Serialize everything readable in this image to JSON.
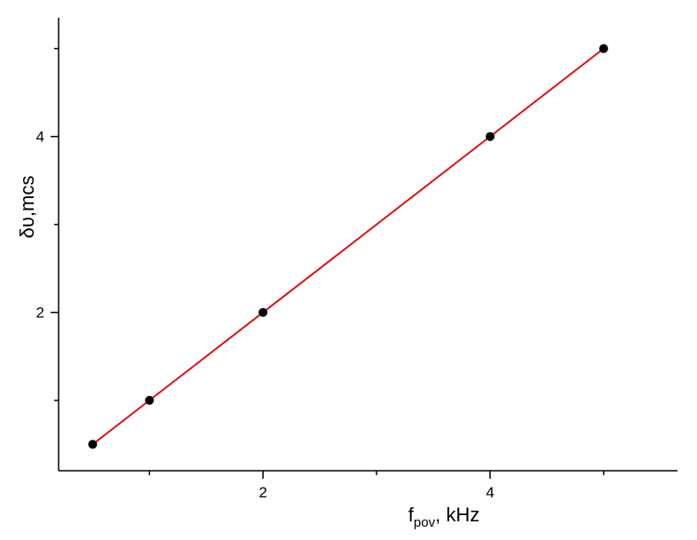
{
  "chart_data": {
    "type": "line",
    "xlabel": {
      "main": "f",
      "sub": "pov",
      "suffix": ", kHz"
    },
    "ylabel": "δυ,mcs",
    "xlim": [
      0.2,
      5.65
    ],
    "ylim": [
      0.2,
      5.35
    ],
    "x_ticks_major": [
      2,
      4
    ],
    "x_ticks_minor": [
      1,
      3,
      5
    ],
    "y_ticks_major": [
      2,
      4
    ],
    "y_ticks_minor": [
      1,
      3,
      5
    ],
    "grid": false,
    "legend": "none",
    "series": [
      {
        "color": "#000000",
        "marker": "circle",
        "x": [
          0.5,
          1,
          2,
          4,
          5
        ],
        "y": [
          0.5,
          1,
          2,
          4,
          5
        ]
      },
      {
        "color": "#dd1111",
        "style": "line",
        "x": [
          0.5,
          5
        ],
        "y": [
          0.5,
          5
        ]
      }
    ]
  }
}
